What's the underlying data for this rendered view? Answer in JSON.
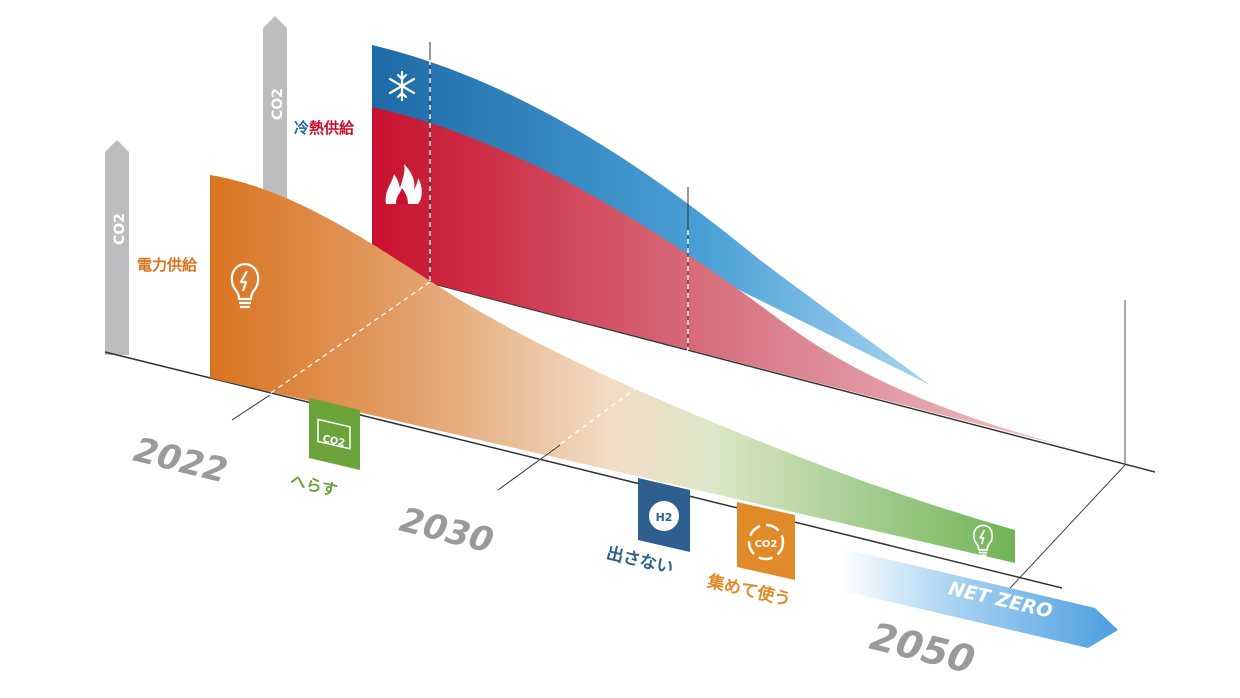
{
  "years": {
    "y2022": "2022",
    "y2030": "2030",
    "y2050": "2050"
  },
  "axis_labels": {
    "co2_left": "CO2",
    "co2_right": "CO2"
  },
  "sections": {
    "power": {
      "label": "電力供給",
      "color": "#d9731f"
    },
    "heat_cooling": {
      "label": "冷熱供給",
      "label_cold_part": "冷",
      "label_hot_part": "熱供給",
      "cold_color": "#1e6aa6",
      "hot_color": "#c8102e"
    }
  },
  "actions": {
    "reduce": {
      "label": "へらす",
      "icon_text": "CO2",
      "color": "#6aa33a"
    },
    "no_emit": {
      "label": "出さない",
      "icon_text": "H2",
      "color": "#2e5f8f"
    },
    "capture_use": {
      "label": "集めて使う",
      "icon_text": "CO2",
      "color": "#e08a2a"
    }
  },
  "net_zero": {
    "label": "NET ZERO",
    "color": "#5aa6e0"
  }
}
